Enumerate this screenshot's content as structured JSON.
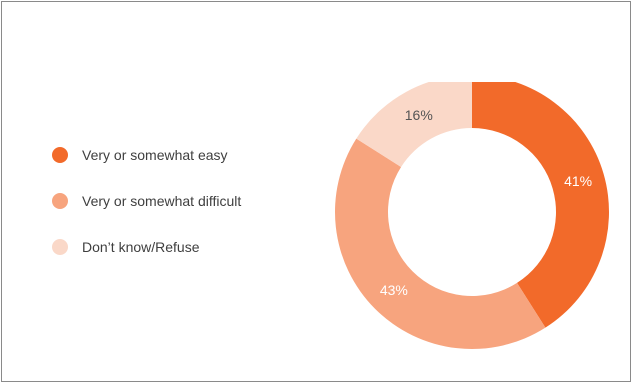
{
  "chart_data": {
    "type": "pie",
    "donut": true,
    "categories": [
      "Very or somewhat easy",
      "Very or somewhat difficult",
      "Don’t know/Refuse"
    ],
    "values": [
      41,
      43,
      16
    ],
    "value_labels": [
      "41%",
      "43%",
      "16%"
    ],
    "colors": [
      "#f26a2a",
      "#f7a47e",
      "#fad8c8"
    ],
    "label_colors": [
      "#ffffff",
      "#ffffff",
      "#555555"
    ],
    "legend_position": "left"
  }
}
